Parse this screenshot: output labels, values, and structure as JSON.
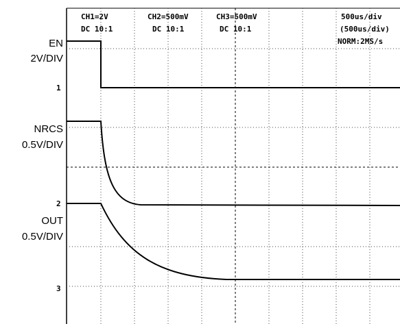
{
  "header": {
    "ch1": {
      "scale": "CH1=2V",
      "coupling": "DC 10:1"
    },
    "ch2": {
      "scale": "CH2=500mV",
      "coupling": "DC 10:1"
    },
    "ch3": {
      "scale": "CH3=500mV",
      "coupling": "DC 10:1"
    },
    "timebase": "500us/div",
    "timebase2": "(500us/div)",
    "sampling": "NORM:2MS/s"
  },
  "channels": [
    {
      "name": "EN",
      "scale": "2V/DIV",
      "marker": "1"
    },
    {
      "name": "NRCS",
      "scale": "0.5V/DIV",
      "marker": "2"
    },
    {
      "name": "OUT",
      "scale": "0.5V/DIV",
      "marker": "3"
    }
  ]
}
